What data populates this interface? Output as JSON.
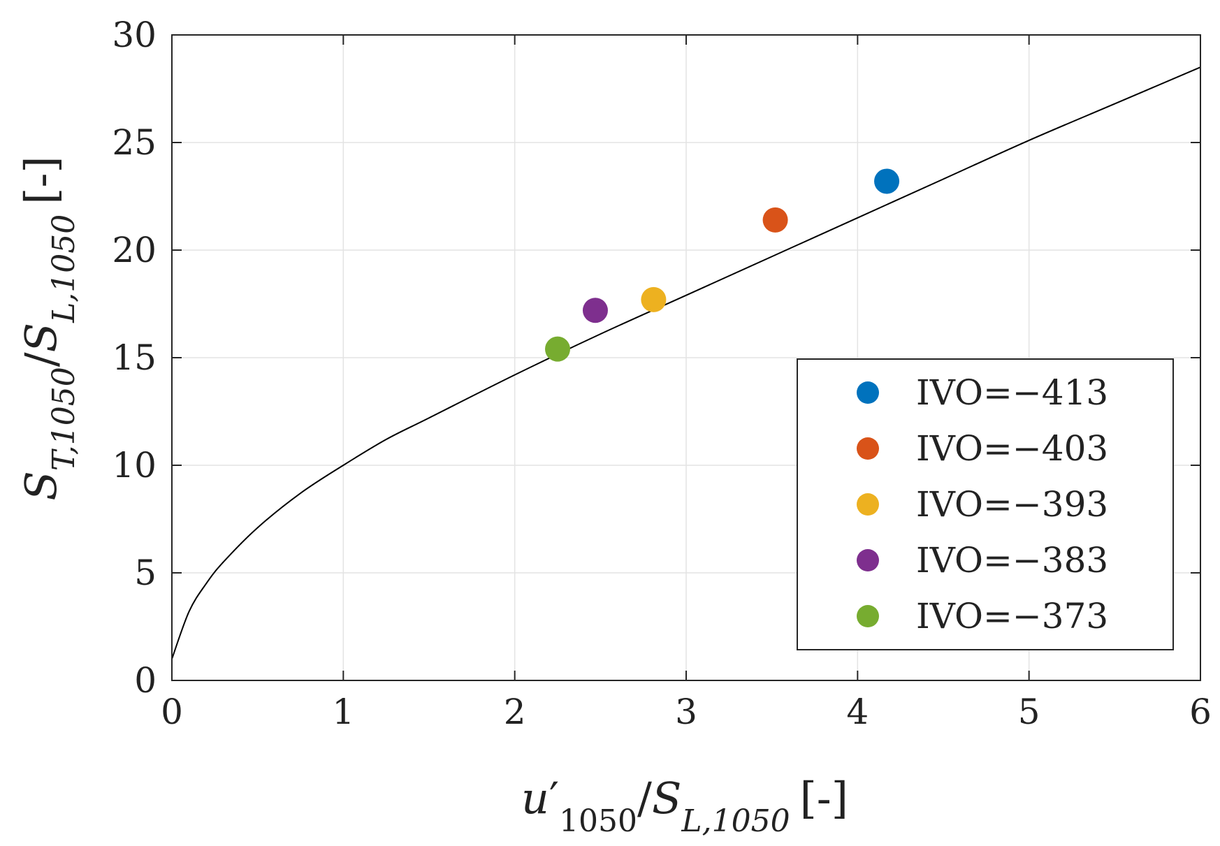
{
  "chart_data": {
    "type": "scatter",
    "xlim": [
      0,
      6
    ],
    "ylim": [
      0,
      30
    ],
    "x_ticks": [
      0,
      1,
      2,
      3,
      4,
      5,
      6
    ],
    "y_ticks": [
      0,
      5,
      10,
      15,
      20,
      25,
      30
    ],
    "x_tick_labels": [
      "0",
      "1",
      "2",
      "3",
      "4",
      "5",
      "6"
    ],
    "y_tick_labels": [
      "0",
      "5",
      "10",
      "15",
      "20",
      "25",
      "30"
    ],
    "grid": true,
    "xlabel": {
      "u": "u",
      "prime": "′",
      "sub1": "1050",
      "slash": "/",
      "S": "S",
      "sub2": "L,1050",
      "unit": "[-]"
    },
    "ylabel": {
      "S1": "S",
      "sub1": "T,1050",
      "slash": "/",
      "S2": "S",
      "sub2": "L,1050",
      "unit": "[-]"
    },
    "fit_curve": {
      "x": [
        0,
        0.1,
        0.2,
        0.3,
        0.5,
        0.75,
        1,
        1.25,
        1.5,
        2,
        2.5,
        3,
        3.5,
        4,
        4.5,
        5,
        5.5,
        6
      ],
      "y": [
        1.0,
        3.2,
        4.5,
        5.5,
        7.1,
        8.7,
        10.0,
        11.2,
        12.2,
        14.2,
        16.1,
        17.9,
        19.7,
        21.5,
        23.3,
        25.1,
        26.8,
        28.5
      ]
    },
    "series": [
      {
        "name": "IVO=−413",
        "x": 4.17,
        "y": 23.2,
        "color": "#0072BD"
      },
      {
        "name": "IVO=−403",
        "x": 3.52,
        "y": 21.4,
        "color": "#D95319"
      },
      {
        "name": "IVO=−393",
        "x": 2.81,
        "y": 17.7,
        "color": "#EDB120"
      },
      {
        "name": "IVO=−383",
        "x": 2.47,
        "y": 17.2,
        "color": "#7E2F8E"
      },
      {
        "name": "IVO=−373",
        "x": 2.25,
        "y": 15.4,
        "color": "#77AC30"
      }
    ],
    "legend_position": "bottom-right"
  }
}
